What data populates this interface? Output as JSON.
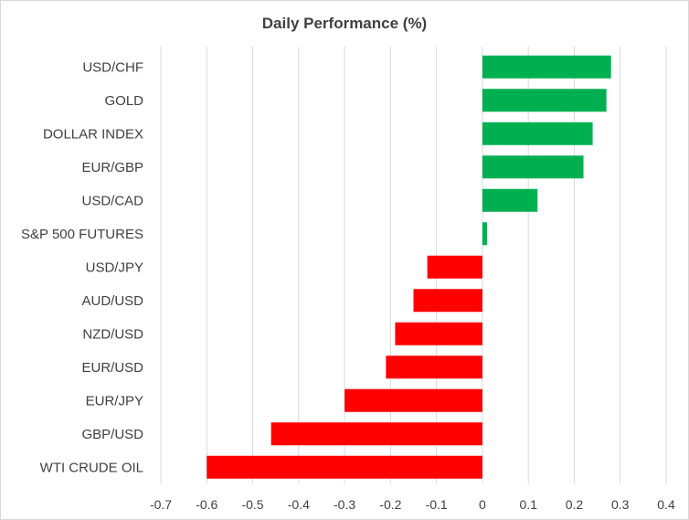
{
  "chart_data": {
    "type": "bar",
    "orientation": "horizontal",
    "title": "Daily Performance (%)",
    "xlabel": "",
    "ylabel": "",
    "xlim": [
      -0.7,
      0.4
    ],
    "xticks": [
      -0.7,
      -0.6,
      -0.5,
      -0.4,
      -0.3,
      -0.2,
      -0.1,
      0,
      0.1,
      0.2,
      0.3,
      0.4
    ],
    "xtick_labels": [
      "-0.7",
      "-0.6",
      "-0.5",
      "-0.4",
      "-0.3",
      "-0.2",
      "-0.1",
      "0",
      "0.1",
      "0.2",
      "0.3",
      "0.4"
    ],
    "grid": "vertical",
    "legend": "none",
    "categories": [
      "USD/CHF",
      "GOLD",
      "DOLLAR INDEX",
      "EUR/GBP",
      "USD/CAD",
      "S&P 500 FUTURES",
      "USD/JPY",
      "AUD/USD",
      "NZD/USD",
      "EUR/USD",
      "EUR/JPY",
      "GBP/USD",
      "WTI CRUDE OIL"
    ],
    "values": [
      0.28,
      0.27,
      0.24,
      0.22,
      0.12,
      0.01,
      -0.12,
      -0.15,
      -0.19,
      -0.21,
      -0.3,
      -0.46,
      -0.6
    ],
    "colors": {
      "positive": "#00b050",
      "negative": "#ff0000"
    }
  }
}
